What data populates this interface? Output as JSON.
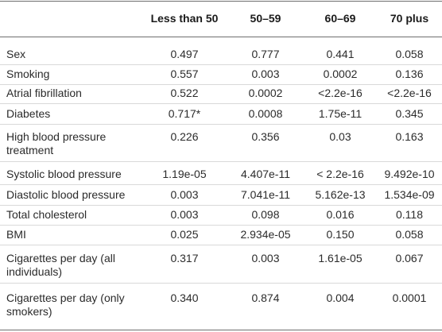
{
  "table": {
    "headers": [
      "",
      "Less than 50",
      "50–59",
      "60–69",
      "70 plus"
    ],
    "rows": [
      [
        "Sex",
        "0.497",
        "0.777",
        "0.441",
        "0.058"
      ],
      [
        "Smoking",
        "0.557",
        "0.003",
        "0.0002",
        "0.136"
      ],
      [
        "Atrial fibrillation",
        "0.522",
        "0.0002",
        "<2.2e-16",
        "<2.2e-16"
      ],
      [
        "Diabetes",
        "0.717*",
        "0.0008",
        "1.75e-11",
        "0.345"
      ],
      [
        "High blood pressure treatment",
        "0.226",
        "0.356",
        "0.03",
        "0.163"
      ],
      [
        "Systolic blood pressure",
        "1.19e-05",
        "4.407e-11",
        "< 2.2e-16",
        "9.492e-10"
      ],
      [
        "Diastolic blood pressure",
        "0.003",
        "7.041e-11",
        "5.162e-13",
        "1.534e-09"
      ],
      [
        "Total cholesterol",
        "0.003",
        "0.098",
        "0.016",
        "0.118"
      ],
      [
        "BMI",
        "0.025",
        "2.934e-05",
        "0.150",
        "0.058"
      ],
      [
        "Cigarettes per day (all individuals)",
        "0.317",
        "0.003",
        "1.61e-05",
        "0.067"
      ],
      [
        "Cigarettes per day (only smokers)",
        "0.340",
        "0.874",
        "0.004",
        "0.0001"
      ]
    ]
  }
}
